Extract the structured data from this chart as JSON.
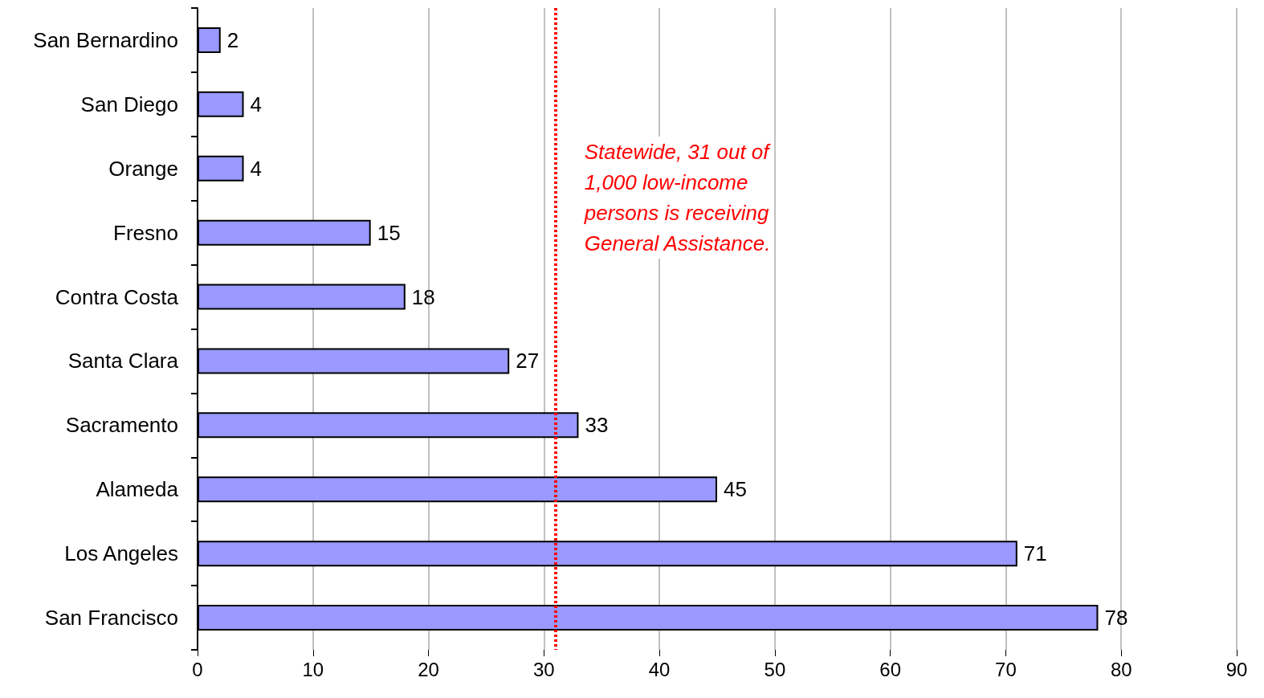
{
  "chart_data": {
    "type": "bar",
    "orientation": "horizontal",
    "categories": [
      "San Bernardino",
      "San Diego",
      "Orange",
      "Fresno",
      "Contra Costa",
      "Santa Clara",
      "Sacramento",
      "Alameda",
      "Los Angeles",
      "San Francisco"
    ],
    "values": [
      2,
      4,
      4,
      15,
      18,
      27,
      33,
      45,
      71,
      78
    ],
    "color": "#9999ff",
    "data_labels": true,
    "xlim": [
      0,
      90
    ],
    "xticks": [
      0,
      10,
      20,
      30,
      40,
      50,
      60,
      70,
      80,
      90
    ],
    "grid": "x",
    "ref_lines": [
      {
        "axis": "x",
        "value": 31,
        "label": "Statewide, 31 out of\n1,000 low-income\npersons is receiving\nGeneral Assistance.",
        "color": "#ff0000",
        "line_style": "dotted"
      }
    ]
  }
}
